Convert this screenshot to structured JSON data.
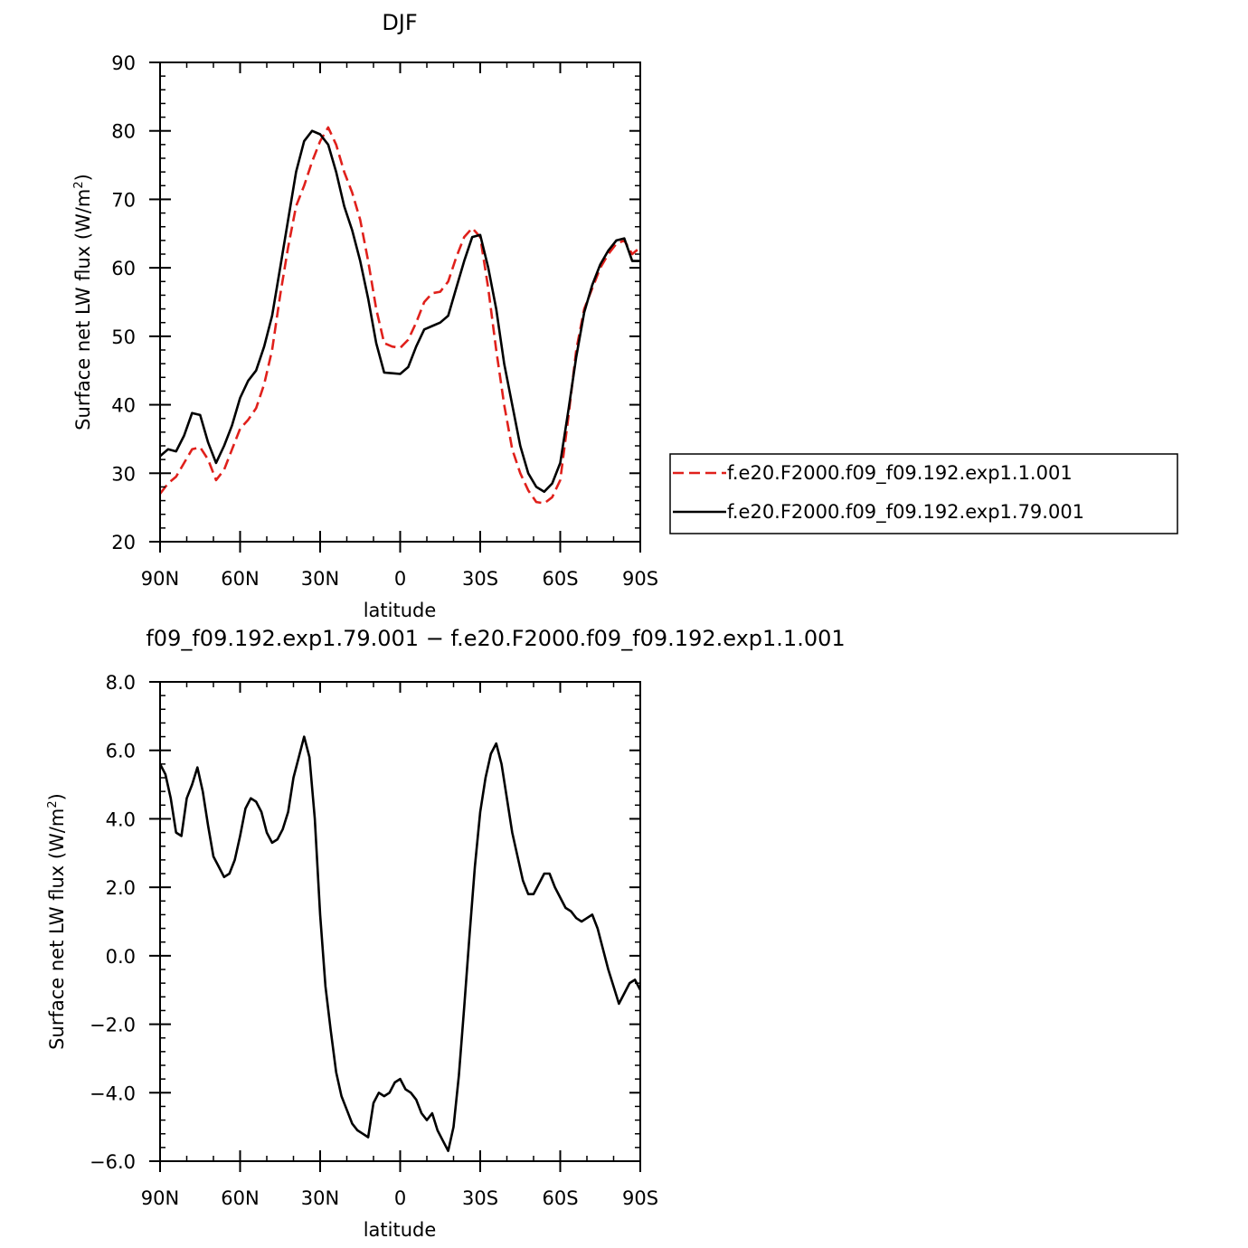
{
  "chart_data": [
    {
      "type": "line",
      "title": "DJF",
      "xlabel": "latitude",
      "ylabel": "Surface net LW flux (W/m²)",
      "ylabel_parts": [
        "Surface net LW flux (W/m",
        "2",
        ")"
      ],
      "xlim": [
        90,
        -90
      ],
      "ylim": [
        20,
        90
      ],
      "xticks": [
        {
          "value": 90,
          "label": "90N"
        },
        {
          "value": 60,
          "label": "60N"
        },
        {
          "value": 30,
          "label": "30N"
        },
        {
          "value": 0,
          "label": "0"
        },
        {
          "value": -30,
          "label": "30S"
        },
        {
          "value": -60,
          "label": "60S"
        },
        {
          "value": -90,
          "label": "90S"
        }
      ],
      "yticks": [
        {
          "value": 20,
          "label": "20"
        },
        {
          "value": 30,
          "label": "30"
        },
        {
          "value": 40,
          "label": "40"
        },
        {
          "value": 50,
          "label": "50"
        },
        {
          "value": 60,
          "label": "60"
        },
        {
          "value": 70,
          "label": "70"
        },
        {
          "value": 80,
          "label": "80"
        },
        {
          "value": 90,
          "label": "90"
        }
      ],
      "grid": false,
      "legend": "right",
      "series": [
        {
          "name": "f.e20.F2000.f09_f09.192.exp1.1.001",
          "color": "#e0201b",
          "dash": "dashed",
          "x": [
            90,
            87,
            84,
            81,
            78,
            75,
            72,
            69,
            66,
            63,
            60,
            57,
            54,
            51,
            48,
            45,
            42,
            39,
            36,
            33,
            30,
            27,
            24,
            21,
            18,
            15,
            12,
            9,
            6,
            3,
            0,
            -3,
            -6,
            -9,
            -12,
            -15,
            -18,
            -21,
            -24,
            -27,
            -30,
            -33,
            -36,
            -39,
            -42,
            -45,
            -48,
            -51,
            -54,
            -57,
            -60,
            -63,
            -66,
            -69,
            -72,
            -75,
            -78,
            -81,
            -84,
            -87,
            -90
          ],
          "y": [
            27,
            28.5,
            29.5,
            31.5,
            33.5,
            33.8,
            32,
            29,
            30.5,
            33.5,
            36.5,
            37.8,
            39.5,
            43,
            48,
            56,
            63,
            69,
            72,
            75.5,
            78.5,
            80.5,
            78,
            74,
            71,
            67,
            61,
            54,
            49,
            48.5,
            48.3,
            49.5,
            52,
            55,
            56.3,
            56.5,
            58,
            61.5,
            64.5,
            65.8,
            64.5,
            57,
            48,
            40,
            33.5,
            30,
            27.5,
            25.8,
            25.6,
            26.5,
            29,
            38,
            48,
            54,
            57,
            60,
            62,
            63.5,
            64,
            62,
            63
          ]
        },
        {
          "name": "f.e20.F2000.f09_f09.192.exp1.79.001",
          "color": "#000000",
          "dash": "solid",
          "x": [
            90,
            87,
            84,
            81,
            78,
            75,
            72,
            69,
            66,
            63,
            60,
            57,
            54,
            51,
            48,
            45,
            42,
            39,
            36,
            33,
            30,
            27,
            24,
            21,
            18,
            15,
            12,
            9,
            6,
            3,
            0,
            -3,
            -6,
            -9,
            -12,
            -15,
            -18,
            -21,
            -24,
            -27,
            -30,
            -33,
            -36,
            -39,
            -42,
            -45,
            -48,
            -51,
            -54,
            -57,
            -60,
            -63,
            -66,
            -69,
            -72,
            -75,
            -78,
            -81,
            -84,
            -87,
            -90
          ],
          "y": [
            32.5,
            33.5,
            33.2,
            35.5,
            38.8,
            38.5,
            34.5,
            31.5,
            34,
            37,
            41,
            43.5,
            45,
            48.5,
            53,
            60,
            67,
            74,
            78.5,
            80,
            79.5,
            78,
            74,
            69,
            65.5,
            61,
            55.5,
            49,
            44.7,
            44.6,
            44.5,
            45.5,
            48.5,
            51,
            51.5,
            52,
            53,
            57,
            61,
            64.5,
            64.8,
            60,
            54,
            46,
            40,
            34,
            30,
            28,
            27.3,
            28.5,
            31.5,
            39,
            47,
            53.5,
            57.5,
            60.5,
            62.5,
            64,
            64.3,
            61,
            61
          ]
        }
      ]
    },
    {
      "type": "line",
      "title": "f09_f09.192.exp1.79.001 − f.e20.F2000.f09_f09.192.exp1.1.001",
      "xlabel": "latitude",
      "ylabel": "Surface net LW flux (W/m²)",
      "ylabel_parts": [
        "Surface net LW flux (W/m",
        "2",
        ")"
      ],
      "xlim": [
        90,
        -90
      ],
      "ylim": [
        -6.0,
        8.0
      ],
      "xticks": [
        {
          "value": 90,
          "label": "90N"
        },
        {
          "value": 60,
          "label": "60N"
        },
        {
          "value": 30,
          "label": "30N"
        },
        {
          "value": 0,
          "label": "0"
        },
        {
          "value": -30,
          "label": "30S"
        },
        {
          "value": -60,
          "label": "60S"
        },
        {
          "value": -90,
          "label": "90S"
        }
      ],
      "yticks": [
        {
          "value": -6,
          "label": "−6.0"
        },
        {
          "value": -4,
          "label": "−4.0"
        },
        {
          "value": -2,
          "label": "−2.0"
        },
        {
          "value": 0,
          "label": "0.0"
        },
        {
          "value": 2,
          "label": "2.0"
        },
        {
          "value": 4,
          "label": "4.0"
        },
        {
          "value": 6,
          "label": "6.0"
        },
        {
          "value": 8,
          "label": "8.0"
        }
      ],
      "grid": false,
      "series": [
        {
          "color": "#000000",
          "dash": "solid",
          "x": [
            90,
            88,
            86,
            84,
            82,
            80,
            78,
            76,
            74,
            72,
            70,
            68,
            66,
            64,
            62,
            60,
            58,
            56,
            54,
            52,
            50,
            48,
            46,
            44,
            42,
            40,
            38,
            36,
            34,
            32,
            30,
            28,
            26,
            24,
            22,
            20,
            18,
            16,
            14,
            12,
            10,
            8,
            6,
            4,
            2,
            0,
            -2,
            -4,
            -6,
            -8,
            -10,
            -12,
            -14,
            -16,
            -18,
            -20,
            -22,
            -24,
            -26,
            -28,
            -30,
            -32,
            -34,
            -36,
            -38,
            -40,
            -42,
            -44,
            -46,
            -48,
            -50,
            -52,
            -54,
            -56,
            -58,
            -60,
            -62,
            -64,
            -66,
            -68,
            -70,
            -72,
            -74,
            -76,
            -78,
            -80,
            -82,
            -84,
            -86,
            -88,
            -90
          ],
          "y": [
            5.6,
            5.3,
            4.6,
            3.6,
            3.5,
            4.6,
            5.0,
            5.5,
            4.8,
            3.8,
            2.9,
            2.6,
            2.3,
            2.4,
            2.8,
            3.5,
            4.3,
            4.6,
            4.5,
            4.2,
            3.6,
            3.3,
            3.4,
            3.7,
            4.2,
            5.2,
            5.8,
            6.4,
            5.8,
            4.0,
            1.2,
            -0.9,
            -2.2,
            -3.4,
            -4.1,
            -4.5,
            -4.9,
            -5.1,
            -5.2,
            -5.3,
            -4.3,
            -4.0,
            -4.1,
            -4.0,
            -3.7,
            -3.6,
            -3.9,
            -4.0,
            -4.2,
            -4.6,
            -4.8,
            -4.6,
            -5.1,
            -5.4,
            -5.7,
            -5.0,
            -3.5,
            -1.5,
            0.6,
            2.6,
            4.2,
            5.2,
            5.9,
            6.2,
            5.6,
            4.6,
            3.6,
            2.9,
            2.2,
            1.8,
            1.8,
            2.1,
            2.4,
            2.4,
            2.0,
            1.7,
            1.4,
            1.3,
            1.1,
            1.0,
            1.1,
            1.2,
            0.8,
            0.2,
            -0.4,
            -0.9,
            -1.4,
            -1.1,
            -0.8,
            -0.7,
            -1.0
          ]
        }
      ]
    }
  ]
}
